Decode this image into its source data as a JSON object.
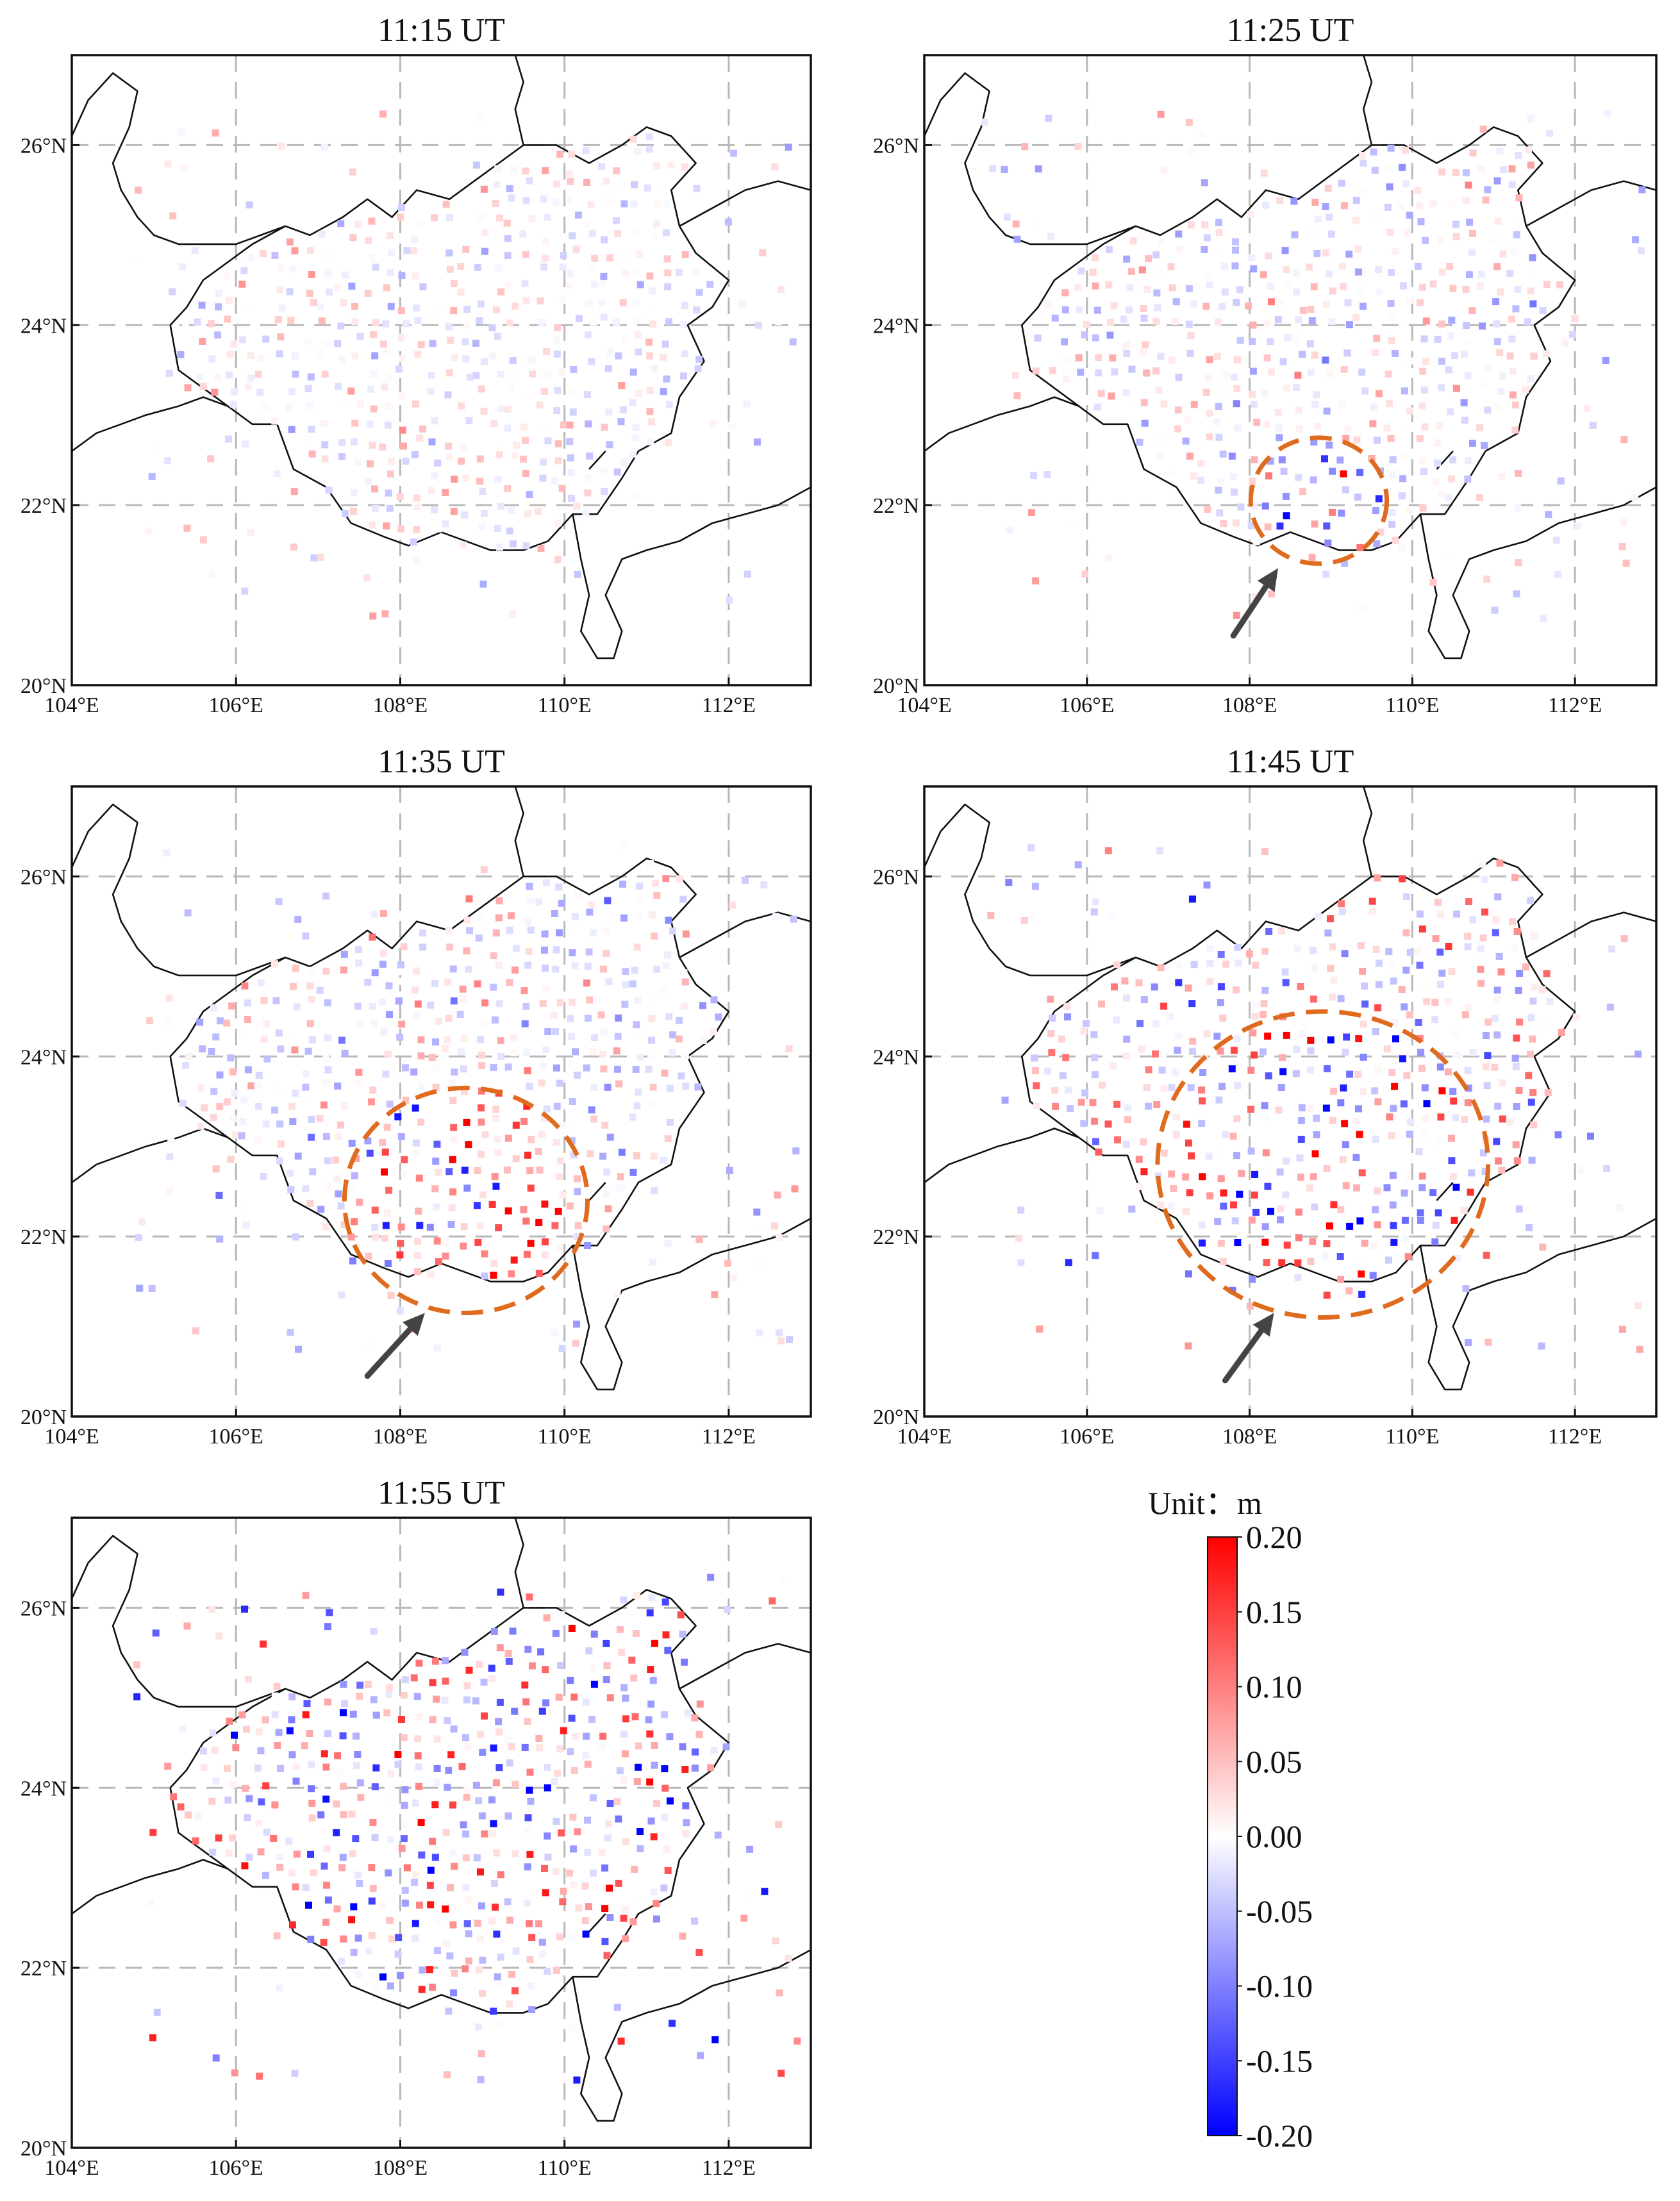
{
  "chart_data": [
    {
      "type": "scatter",
      "title": "11:15 UT",
      "x_ticks": [
        "104°E",
        "106°E",
        "108°E",
        "110°E",
        "112°E"
      ],
      "y_ticks": [
        "20°N",
        "22°N",
        "24°N",
        "26°N"
      ],
      "xlim": [
        104,
        113
      ],
      "ylim": [
        20,
        27
      ],
      "grid": true,
      "highlight_circle": null,
      "arrow": null,
      "pattern": "weak"
    },
    {
      "type": "scatter",
      "title": "11:25 UT",
      "x_ticks": [
        "104°E",
        "106°E",
        "108°E",
        "110°E",
        "112°E"
      ],
      "y_ticks": [
        "20°N",
        "22°N",
        "24°N",
        "26°N"
      ],
      "xlim": [
        104,
        113
      ],
      "ylim": [
        20,
        27
      ],
      "grid": true,
      "highlight_circle": {
        "lon": 108.85,
        "lat": 22.05,
        "r_lat": 0.7
      },
      "arrow": {
        "from": [
          107.8,
          20.55
        ],
        "to": [
          108.35,
          21.3
        ]
      },
      "pattern": "small"
    },
    {
      "type": "scatter",
      "title": "11:35 UT",
      "x_ticks": [
        "104°E",
        "106°E",
        "108°E",
        "110°E",
        "112°E"
      ],
      "y_ticks": [
        "20°N",
        "22°N",
        "24°N",
        "26°N"
      ],
      "xlim": [
        104,
        113
      ],
      "ylim": [
        20,
        27
      ],
      "grid": true,
      "highlight_circle": {
        "lon": 108.8,
        "lat": 22.4,
        "r_lat": 1.25
      },
      "arrow": {
        "from": [
          107.6,
          20.45
        ],
        "to": [
          108.3,
          21.15
        ]
      },
      "pattern": "medium"
    },
    {
      "type": "scatter",
      "title": "11:45 UT",
      "x_ticks": [
        "104°E",
        "106°E",
        "108°E",
        "110°E",
        "112°E"
      ],
      "y_ticks": [
        "20°N",
        "22°N",
        "24°N",
        "26°N"
      ],
      "xlim": [
        104,
        113
      ],
      "ylim": [
        20,
        27
      ],
      "grid": true,
      "highlight_circle": {
        "lon": 108.9,
        "lat": 22.8,
        "r_lat": 1.7
      },
      "arrow": {
        "from": [
          107.7,
          20.4
        ],
        "to": [
          108.3,
          21.15
        ]
      },
      "pattern": "large"
    },
    {
      "type": "scatter",
      "title": "11:55 UT",
      "x_ticks": [
        "104°E",
        "106°E",
        "108°E",
        "110°E",
        "112°E"
      ],
      "y_ticks": [
        "20°N",
        "22°N",
        "24°N",
        "26°N"
      ],
      "xlim": [
        104,
        113
      ],
      "ylim": [
        20,
        27
      ],
      "grid": true,
      "highlight_circle": null,
      "arrow": null,
      "pattern": "strong"
    }
  ],
  "colorbar": {
    "title": "Unit：m",
    "min": -0.2,
    "max": 0.2,
    "tick_labels": [
      "0.20",
      "0.15",
      "0.10",
      "0.05",
      "0.00",
      "-0.05",
      "-0.10",
      "-0.15",
      "-0.20"
    ],
    "colors": {
      "low": "#0000ff",
      "mid": "#ffffff",
      "high": "#ff0000"
    }
  },
  "colors": {
    "circle": "#e06a1d",
    "arrow": "#444444",
    "boundary": "#111111",
    "grid": "#b8b8b8"
  }
}
